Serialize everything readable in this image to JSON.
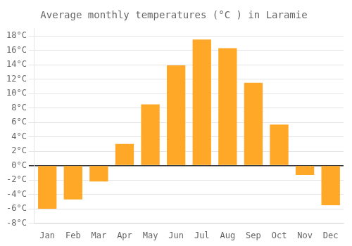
{
  "chart_data": {
    "type": "bar",
    "title": "Average monthly temperatures (°C ) in Laramie",
    "categories": [
      "Jan",
      "Feb",
      "Mar",
      "Apr",
      "May",
      "Jun",
      "Jul",
      "Aug",
      "Sep",
      "Oct",
      "Nov",
      "Dec"
    ],
    "values": [
      -6.0,
      -4.7,
      -2.2,
      3.0,
      8.5,
      13.9,
      17.5,
      16.3,
      11.5,
      5.7,
      -1.3,
      -5.5
    ],
    "color": "#FFA726",
    "ylim": [
      -8,
      19
    ],
    "yticks": [
      {
        "value": -8,
        "label": "-8°C"
      },
      {
        "value": -6,
        "label": "-6°C"
      },
      {
        "value": -4,
        "label": "-4°C"
      },
      {
        "value": -2,
        "label": "-2°C"
      },
      {
        "value": 0,
        "label": "0°C"
      },
      {
        "value": 2,
        "label": "2°C"
      },
      {
        "value": 4,
        "label": "4°C"
      },
      {
        "value": 6,
        "label": "6°C"
      },
      {
        "value": 8,
        "label": "8°C"
      },
      {
        "value": 10,
        "label": "10°C"
      },
      {
        "value": 12,
        "label": "12°C"
      },
      {
        "value": 14,
        "label": "14°C"
      },
      {
        "value": 16,
        "label": "16°C"
      },
      {
        "value": 18,
        "label": "18°C"
      }
    ],
    "grid": true
  }
}
